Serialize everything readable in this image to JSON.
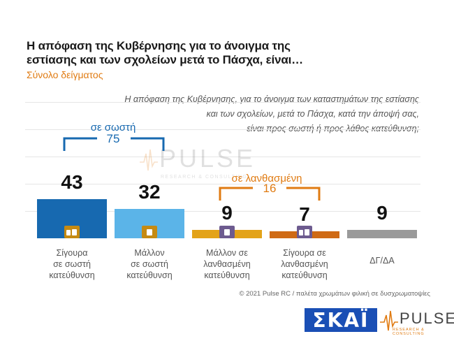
{
  "header": {
    "title": "Η απόφαση της Κυβέρνησης για το άνοιγμα της εστίασης και των σχολείων μετά το Πάσχα, είναι…",
    "subtitle": "Σύνολο δείγματος"
  },
  "question": {
    "line1": "Η απόφαση της Κυβέρνησης, για το άνοιγμα των καταστημάτων της εστίασης",
    "line2": "και των σχολείων, μετά το Πάσχα, κατά την άποψή σας,",
    "line3": "είναι προς σωστή ή προς λάθος κατεύθυνση;"
  },
  "groups": {
    "correct": {
      "label": "σε σωστή",
      "total": "75"
    },
    "wrong": {
      "label": "σε λανθασμένη",
      "total": "16"
    }
  },
  "watermark": {
    "text": "PULSE",
    "sub": "RESEARCH & CONSULTING"
  },
  "footer": {
    "text": "© 2021 Pulse RC  /  παλέτα χρωμάτων φιλική σε δυσχρωματοψίες"
  },
  "logos": {
    "skai": "ΣΚΑΪ",
    "pulse": "PULSE",
    "pulse_sub": "RESEARCH & CONSULTING"
  },
  "colors": {
    "bar1": "#1769b0",
    "bar2": "#5bb4e8",
    "bar3": "#e3a319",
    "bar4": "#cf6a14",
    "bar5": "#9a9a9a",
    "correct_accent": "#1769b0",
    "wrong_accent": "#e07b12"
  },
  "icons": [
    "double-thumbs-up-icon",
    "thumbs-up-icon",
    "thumbs-down-icon",
    "double-thumbs-down-icon",
    ""
  ],
  "chart_data": {
    "type": "bar",
    "title": "Η απόφαση της Κυβέρνησης για το άνοιγμα της εστίασης και των σχολείων μετά το Πάσχα, είναι…",
    "categories": [
      [
        "Σίγουρα",
        "σε σωστή",
        "κατεύθυνση"
      ],
      [
        "Μάλλον",
        "σε σωστή",
        "κατεύθυνση"
      ],
      [
        "Μάλλον σε",
        "λανθασμένη",
        "κατεύθυνση"
      ],
      [
        "Σίγουρα σε",
        "λανθασμένη",
        "κατεύθυνση"
      ],
      [
        "ΔΓ/ΔΑ"
      ]
    ],
    "values": [
      43,
      32,
      9,
      7,
      9
    ],
    "ylim": [
      0,
      43
    ],
    "grid": true,
    "legend": "none"
  }
}
